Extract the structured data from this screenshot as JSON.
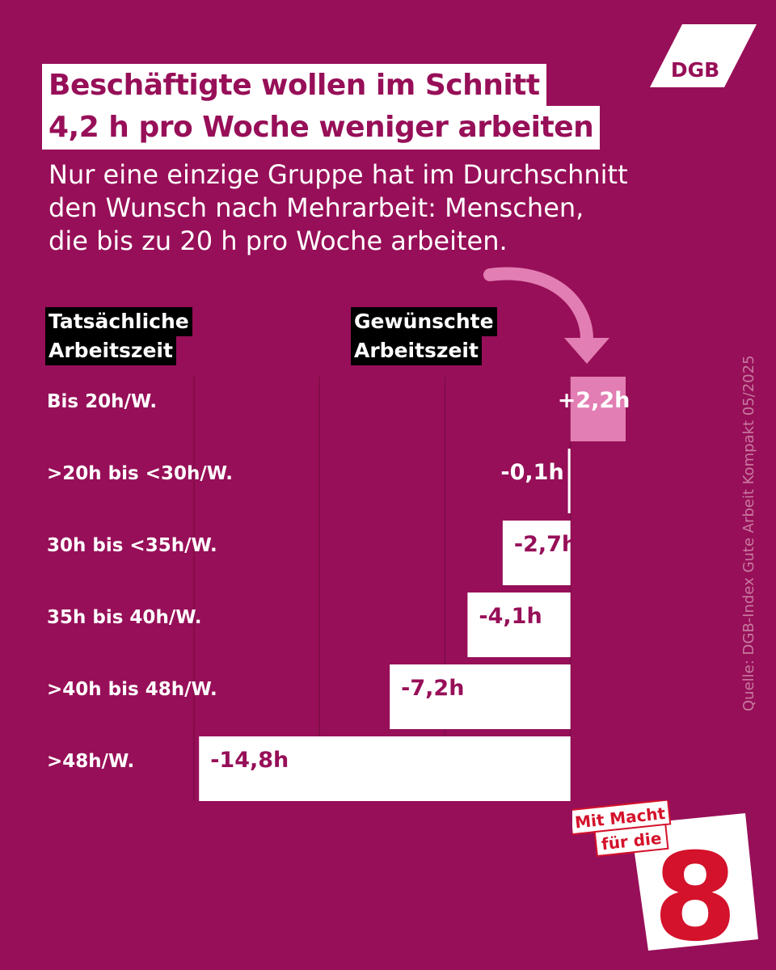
{
  "title": {
    "line1": "Beschäftigte wollen im Schnitt",
    "line2": "4,2 h pro Woche weniger arbeiten"
  },
  "subtitle": {
    "line1": "Nur eine einzige Gruppe hat im Durchschnitt",
    "line2": "den Wunsch nach Mehrarbeit: Menschen,",
    "line3": "die bis zu 20 h pro Woche arbeiten."
  },
  "logo": {
    "text": "DGB"
  },
  "column_headers": {
    "left": [
      "Tatsächliche",
      "Arbeitszeit"
    ],
    "right": [
      "Gewünschte",
      "Arbeitszeit"
    ]
  },
  "source": "Quelle: DGB-Index Gute Arbeit Kompakt 05/2025",
  "badge": {
    "line1": "Mit Macht",
    "line2": "für die",
    "number": "8"
  },
  "colors": {
    "background": "#970f58",
    "bar_negative": "#ffffff",
    "bar_positive": "#e27eb3",
    "label_dark": "#970f58",
    "arrow": "#e27eb3",
    "badge_red": "#d4122b"
  },
  "chart_data": {
    "type": "bar",
    "orientation": "horizontal",
    "categories": [
      "Bis 20h/W.",
      ">20h bis <30h/W.",
      "30h bis <35h/W.",
      "35h bis 40h/W.",
      ">40h bis 48h/W.",
      ">48h/W."
    ],
    "values": [
      2.2,
      -0.1,
      -2.7,
      -4.1,
      -7.2,
      -14.8
    ],
    "data_labels": [
      "+2,2h",
      "-0,1h",
      "-2,7h",
      "-4,1h",
      "-7,2h",
      "-14,8h"
    ],
    "xlim": [
      -15,
      2.2
    ],
    "grid": true,
    "gridlines": [
      -15,
      -10,
      -5,
      0
    ]
  }
}
